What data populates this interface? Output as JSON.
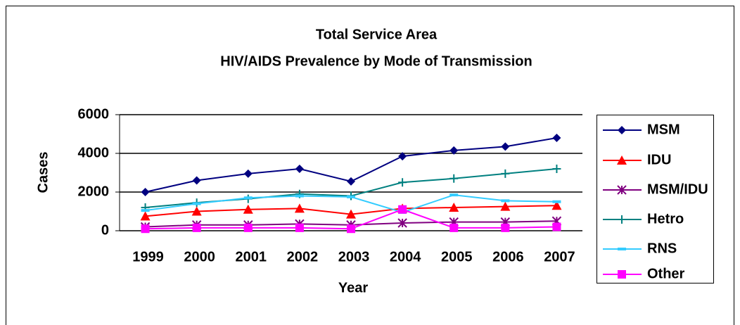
{
  "chart_data": {
    "type": "line",
    "title": [
      "Total Service Area",
      "HIV/AIDS Prevalence by Mode of Transmission"
    ],
    "x_label": "Year",
    "y_label": "Cases",
    "categories": [
      "1999",
      "2000",
      "2001",
      "2002",
      "2003",
      "2004",
      "2005",
      "2006",
      "2007"
    ],
    "series": [
      {
        "name": "MSM",
        "color": "#000080",
        "marker": "diamond",
        "values": [
          2000,
          2600,
          2950,
          3200,
          2550,
          3850,
          4150,
          4350,
          4800
        ]
      },
      {
        "name": "IDU",
        "color": "#ff0000",
        "marker": "triangle",
        "values": [
          750,
          1000,
          1100,
          1150,
          850,
          1150,
          1200,
          1250,
          1300
        ]
      },
      {
        "name": "MSM/IDU",
        "color": "#800080",
        "marker": "star",
        "values": [
          200,
          300,
          300,
          350,
          300,
          400,
          450,
          450,
          500
        ]
      },
      {
        "name": "Hetro",
        "color": "#008080",
        "marker": "plus",
        "values": [
          1200,
          1450,
          1650,
          1900,
          1800,
          2500,
          2700,
          2950,
          3200
        ]
      },
      {
        "name": "RNS",
        "color": "#33ccff",
        "marker": "dash",
        "values": [
          1050,
          1400,
          1700,
          1800,
          1750,
          950,
          1850,
          1550,
          1500
        ]
      },
      {
        "name": "Other",
        "color": "#ff00ff",
        "marker": "square",
        "values": [
          100,
          150,
          150,
          150,
          100,
          1100,
          150,
          150,
          200
        ]
      }
    ],
    "ylim": [
      0,
      6000
    ],
    "yticks": [
      0,
      2000,
      4000,
      6000
    ],
    "grid": true,
    "legend": "right"
  }
}
